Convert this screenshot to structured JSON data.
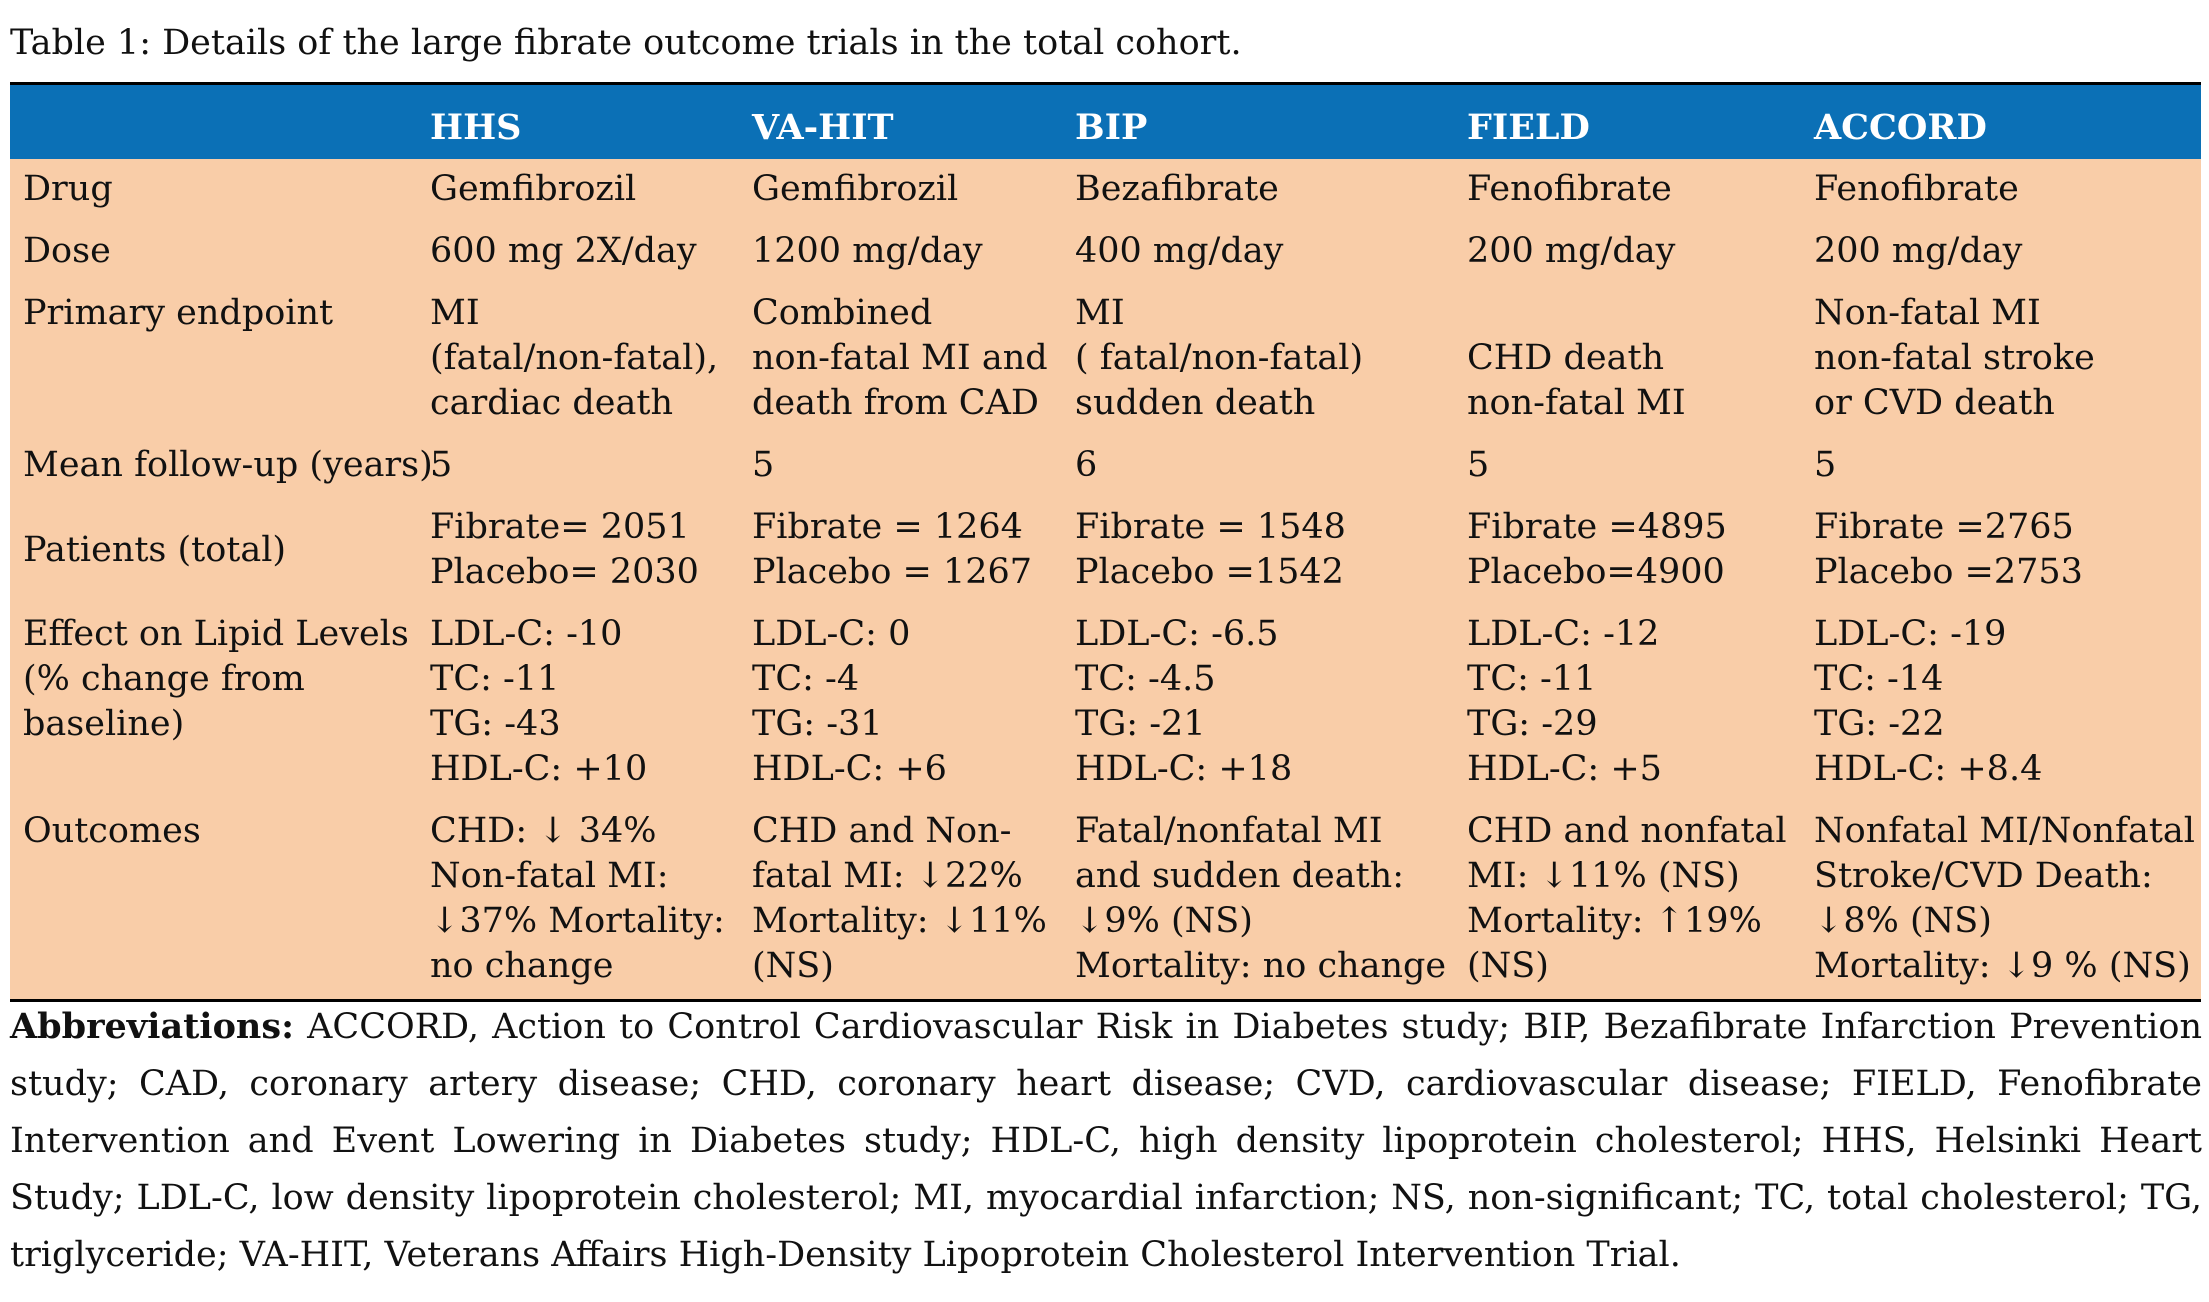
{
  "caption": "Table 1: Details of the large fibrate outcome trials in the total cohort.",
  "table": {
    "headers": [
      "",
      "HHS",
      "VA-HIT",
      "BIP",
      "FIELD",
      "ACCORD"
    ],
    "rows": [
      {
        "label": [
          "Drug"
        ],
        "cells": [
          [
            "Gemfibrozil"
          ],
          [
            "Gemfibrozil"
          ],
          [
            "Bezafibrate"
          ],
          [
            "Fenofibrate"
          ],
          [
            "Fenofibrate"
          ]
        ]
      },
      {
        "label": [
          "Dose"
        ],
        "cells": [
          [
            "600 mg 2X/day"
          ],
          [
            "1200 mg/day"
          ],
          [
            "400 mg/day"
          ],
          [
            "200 mg/day"
          ],
          [
            "200 mg/day"
          ]
        ]
      },
      {
        "label": [
          "Primary endpoint"
        ],
        "cells": [
          [
            "MI",
            "(fatal/non-fatal),",
            "cardiac death"
          ],
          [
            "Combined",
            "non-fatal MI and",
            "death from CAD"
          ],
          [
            "MI",
            "( fatal/non-fatal)",
            "sudden death"
          ],
          [
            "",
            "CHD death",
            "non-fatal MI"
          ],
          [
            "Non-fatal MI",
            "non-fatal stroke",
            "or CVD death"
          ]
        ]
      },
      {
        "label": [
          "Mean follow-up (years)"
        ],
        "cells": [
          [
            "5"
          ],
          [
            "5"
          ],
          [
            "6"
          ],
          [
            "5"
          ],
          [
            "5"
          ]
        ]
      },
      {
        "label": [
          "Patients (total)"
        ],
        "cells": [
          [
            "Fibrate= 2051",
            "Placebo= 2030"
          ],
          [
            "Fibrate = 1264",
            "Placebo = 1267"
          ],
          [
            "Fibrate = 1548",
            "Placebo =1542"
          ],
          [
            "Fibrate =4895",
            "Placebo=4900"
          ],
          [
            "Fibrate =2765",
            "Placebo =2753"
          ]
        ]
      },
      {
        "label": [
          "Effect on Lipid Levels",
          "(% change from",
          "baseline)"
        ],
        "cells": [
          [
            "LDL-C: -10",
            "TC: -11",
            "TG: -43",
            "HDL-C: +10"
          ],
          [
            "LDL-C: 0",
            "TC: -4",
            "TG: -31",
            "HDL-C: +6"
          ],
          [
            "LDL-C: -6.5",
            "TC: -4.5",
            "TG: -21",
            "HDL-C: +18"
          ],
          [
            "LDL-C: -12",
            "TC: -11",
            "TG: -29",
            "HDL-C: +5"
          ],
          [
            "LDL-C: -19",
            "TC: -14",
            "TG: -22",
            "HDL-C: +8.4"
          ]
        ]
      },
      {
        "label": [
          "Outcomes"
        ],
        "cells": [
          [
            "CHD: ↓ 34%",
            "Non-fatal MI:",
            "↓37% Mortality:",
            "no change"
          ],
          [
            "CHD and Non-",
            "fatal MI: ↓22%",
            "Mortality: ↓11%",
            "(NS)"
          ],
          [
            "Fatal/nonfatal MI",
            "and sudden death:",
            "↓9% (NS)",
            "Mortality: no change"
          ],
          [
            "CHD and nonfatal",
            "MI: ↓11% (NS)",
            "Mortality: ↑19%",
            "(NS)"
          ],
          [
            "Nonfatal MI/Nonfatal",
            "Stroke/CVD Death:",
            "↓8% (NS)",
            "Mortality: ↓9 % (NS)"
          ]
        ]
      }
    ]
  },
  "abbreviations": {
    "heading": "Abbreviations:",
    "text": " ACCORD, Action to Control Cardiovascular Risk in Diabetes study; BIP, Bezafibrate Infarction Prevention study; CAD, coronary artery disease; CHD, coronary heart disease; CVD, cardiovascular disease; FIELD, Fenofibrate Intervention and Event Lowering in Diabetes study; HDL-C, high density lipoprotein cholesterol; HHS, Helsinki Heart Study; LDL-C, low density lipoprotein cholesterol; MI, myocardial infarction; NS, non-significant; TC, total cholesterol; TG, triglyceride; VA-HIT, Veterans Affairs High-Density Lipoprotein Cholesterol Intervention Trial."
  }
}
